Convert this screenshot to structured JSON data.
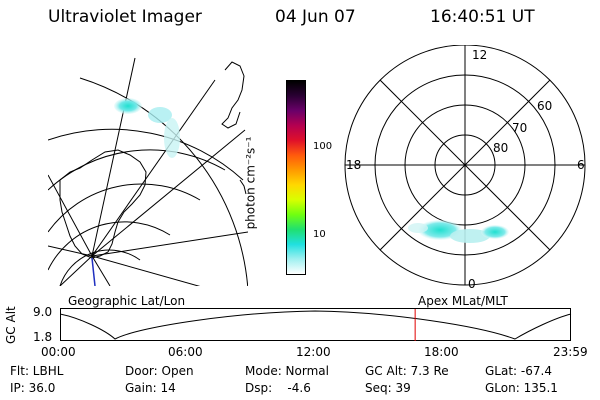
{
  "header": {
    "instrument": "Ultraviolet Imager",
    "date": "04 Jun 07",
    "time": "16:40:51 UT"
  },
  "colorbar": {
    "label": "photon cm⁻²s⁻¹",
    "ticks": [
      "100",
      "10"
    ],
    "colors": [
      "#000000",
      "#2a0033",
      "#6a0069",
      "#b40050",
      "#e0102a",
      "#ff5a0c",
      "#ff9a00",
      "#ffd800",
      "#d8ff00",
      "#70ff10",
      "#20e070",
      "#20e0e0",
      "#a0f0f0",
      "#ffffff"
    ]
  },
  "polar": {
    "mlt_labels": {
      "top": "12",
      "left": "18",
      "right": "6",
      "bottom": "0"
    },
    "lat_labels": [
      "60",
      "70",
      "80"
    ]
  },
  "timeline": {
    "left_label": "Geographic Lat/Lon",
    "right_label": "Apex MLat/MLT",
    "axis_title": "GC Alt",
    "y_ticks": [
      "9.0",
      "1.8"
    ],
    "x_ticks": [
      "00:00",
      "06:00",
      "12:00",
      "18:00",
      "23:59"
    ],
    "current_time_hours": 16.68,
    "marker_color": "#e00000"
  },
  "info": {
    "row1": {
      "filter": "Flt: LBHL",
      "door": "Door: Open",
      "mode": "Mode: Normal",
      "gc_alt": "GC Alt: 7.3 Re",
      "glat": "GLat: -67.4"
    },
    "row2": {
      "ip": "IP: 36.0",
      "gain": "Gain: 14",
      "dsp": "Dsp:    -4.6",
      "seq": "Seq: 39",
      "glon": "GLon: 135.1"
    }
  }
}
